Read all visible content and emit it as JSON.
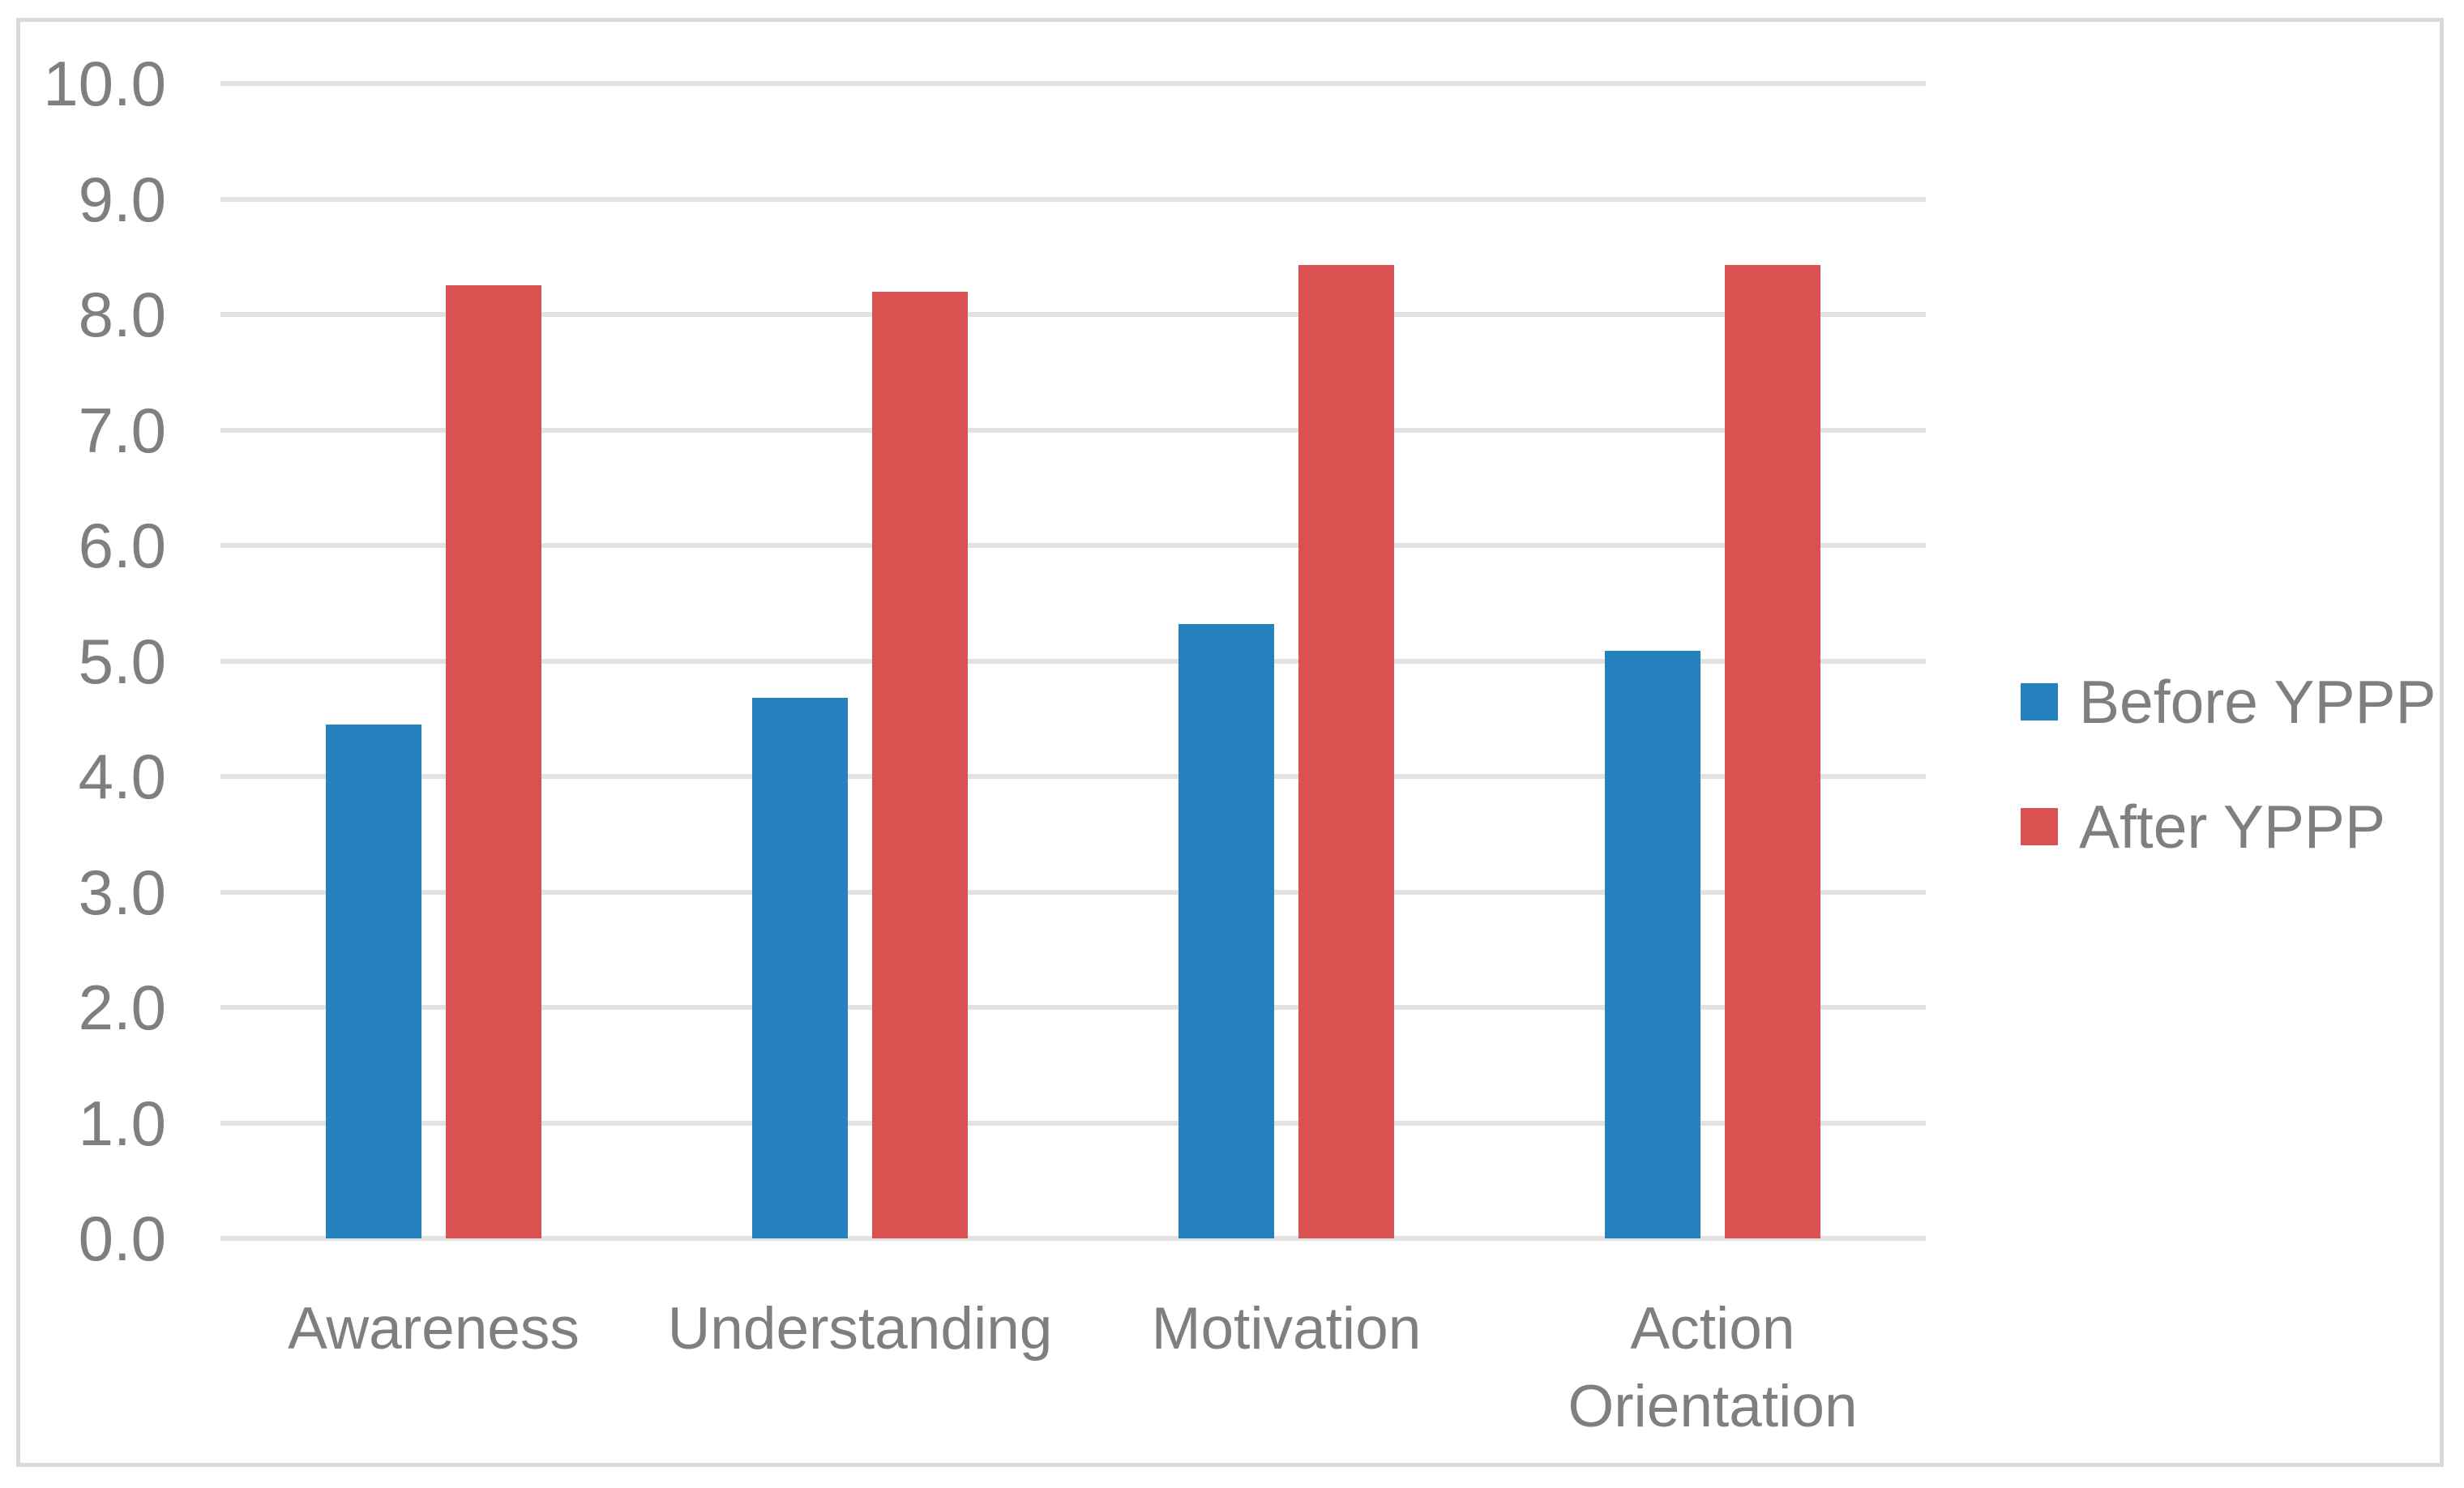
{
  "chart_data": {
    "type": "bar",
    "title": "",
    "xlabel": "",
    "ylabel": "",
    "categories": [
      "Awareness",
      "Understanding",
      "Motivation",
      "Action Orientation"
    ],
    "series": [
      {
        "name": "Before YPPP",
        "color": "#2681BF",
        "values": [
          4.45,
          4.68,
          5.32,
          5.09
        ]
      },
      {
        "name": "After YPPP",
        "color": "#D95151",
        "values": [
          8.25,
          8.2,
          8.43,
          8.43
        ]
      }
    ],
    "ylim": [
      0,
      10
    ],
    "ytick_step": 1.0,
    "ytick_labels": [
      "0.0",
      "1.0",
      "2.0",
      "3.0",
      "4.0",
      "5.0",
      "6.0",
      "7.0",
      "8.0",
      "9.0",
      "10.0"
    ],
    "grid": true,
    "legend_position": "right",
    "legend": [
      {
        "label": "Before YPPP",
        "color": "#2681BF"
      },
      {
        "label": "After YPPP",
        "color": "#D95151"
      }
    ],
    "colors": {
      "axis_text": "#7F7F7F",
      "gridline": "#E2E2E2",
      "chart_border": "#D9D9D9",
      "background": "#FFFFFF"
    }
  }
}
